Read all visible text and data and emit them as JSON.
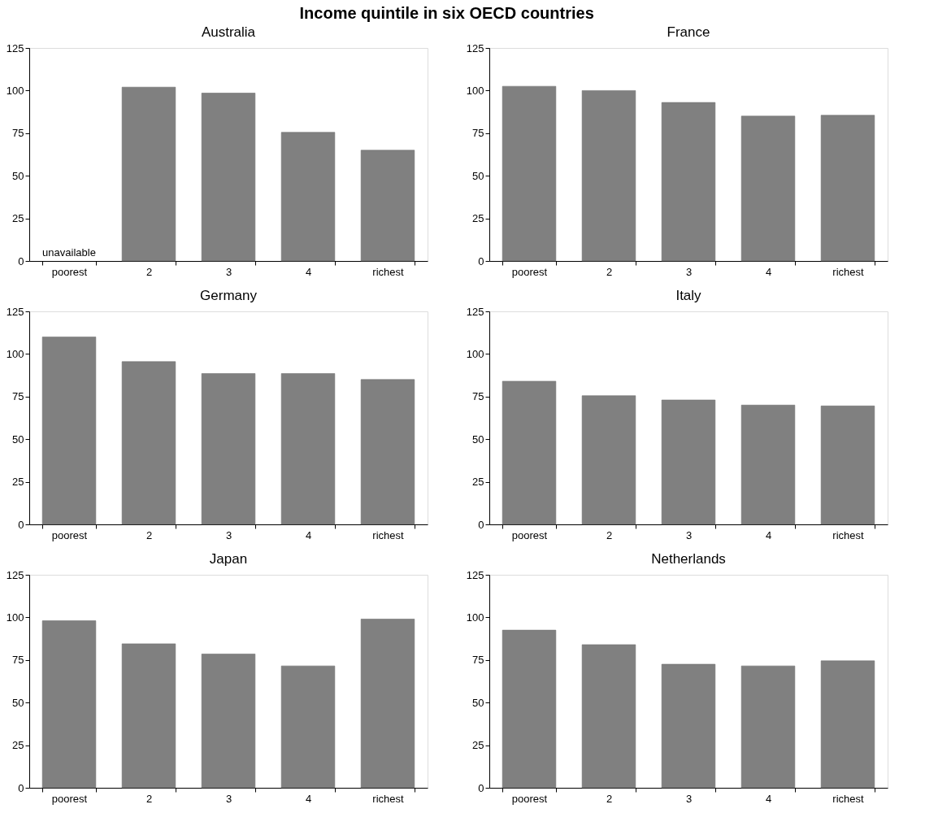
{
  "chart_data": [
    {
      "type": "bar",
      "title": "Australia",
      "annotations": [
        "Income quintile in six OECD countries",
        "unavailable"
      ],
      "categories": [
        "poorest",
        "2",
        "3",
        "4",
        "richest"
      ],
      "values": [
        null,
        102,
        98.5,
        75.5,
        65
      ],
      "color": "#808080",
      "ylim": [
        0,
        125
      ],
      "yticks": [
        0,
        25,
        50,
        75,
        100,
        125
      ],
      "grid": false
    },
    {
      "type": "bar",
      "title": "France",
      "categories": [
        "poorest",
        "2",
        "3",
        "4",
        "richest"
      ],
      "values": [
        102.5,
        100,
        93,
        85,
        85.5
      ],
      "color": "#808080",
      "ylim": [
        0,
        125
      ],
      "yticks": [
        0,
        25,
        50,
        75,
        100,
        125
      ],
      "grid": false
    },
    {
      "type": "bar",
      "title": "Germany",
      "categories": [
        "poorest",
        "2",
        "3",
        "4",
        "richest"
      ],
      "values": [
        110,
        95.5,
        88.5,
        88.5,
        85
      ],
      "color": "#808080",
      "ylim": [
        0,
        125
      ],
      "yticks": [
        0,
        25,
        50,
        75,
        100,
        125
      ],
      "grid": false
    },
    {
      "type": "bar",
      "title": "Italy",
      "categories": [
        "poorest",
        "2",
        "3",
        "4",
        "richest"
      ],
      "values": [
        84,
        75.5,
        73,
        70,
        69.5
      ],
      "color": "#808080",
      "ylim": [
        0,
        125
      ],
      "yticks": [
        0,
        25,
        50,
        75,
        100,
        125
      ],
      "grid": false
    },
    {
      "type": "bar",
      "title": "Japan",
      "categories": [
        "poorest",
        "2",
        "3",
        "4",
        "richest"
      ],
      "values": [
        98,
        84.5,
        78.5,
        71.5,
        99
      ],
      "color": "#808080",
      "ylim": [
        0,
        125
      ],
      "yticks": [
        0,
        25,
        50,
        75,
        100,
        125
      ],
      "grid": false
    },
    {
      "type": "bar",
      "title": "Netherlands",
      "categories": [
        "poorest",
        "2",
        "3",
        "4",
        "richest"
      ],
      "values": [
        92.5,
        84,
        72.5,
        71.5,
        74.5
      ],
      "color": "#808080",
      "ylim": [
        0,
        125
      ],
      "yticks": [
        0,
        25,
        50,
        75,
        100,
        125
      ],
      "grid": false
    }
  ]
}
